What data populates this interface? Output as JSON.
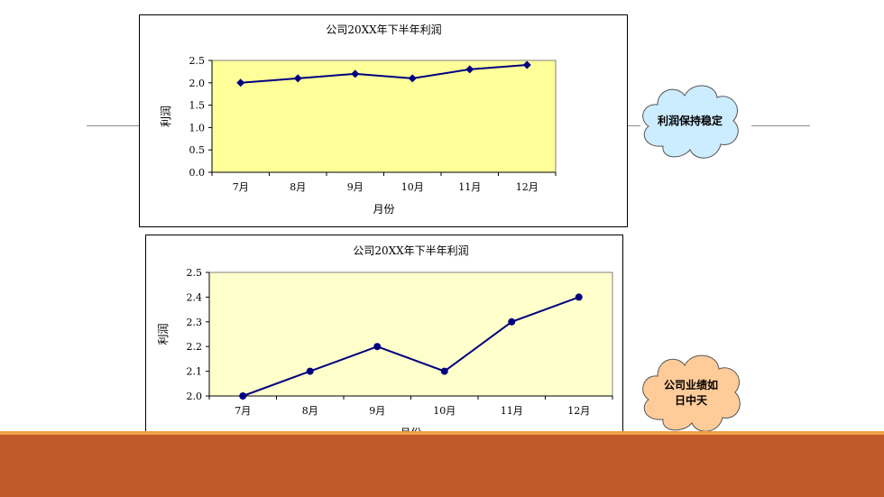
{
  "chart_data": [
    {
      "type": "line",
      "title": "公司20XX年下半年利润",
      "xlabel": "月份",
      "ylabel": "利润",
      "categories": [
        "7月",
        "8月",
        "9月",
        "10月",
        "11月",
        "12月"
      ],
      "values": [
        2.0,
        2.1,
        2.2,
        2.1,
        2.3,
        2.4
      ],
      "ylim": [
        0.0,
        2.5
      ],
      "yticks": [
        "0.0",
        "0.5",
        "1.0",
        "1.5",
        "2.0",
        "2.5"
      ],
      "marker": "diamond",
      "plot_background": "#ffff99",
      "line_color": "#000080",
      "grid": false
    },
    {
      "type": "line",
      "title": "公司20XX年下半年利润",
      "xlabel": "月份",
      "ylabel": "利润",
      "categories": [
        "7月",
        "8月",
        "9月",
        "10月",
        "11月",
        "12月"
      ],
      "values": [
        2.0,
        2.1,
        2.2,
        2.1,
        2.3,
        2.4
      ],
      "ylim": [
        2.0,
        2.5
      ],
      "yticks": [
        "2.0",
        "2.1",
        "2.2",
        "2.3",
        "2.4",
        "2.5"
      ],
      "marker": "circle",
      "plot_background": "#ffffcc",
      "line_color": "#000080",
      "grid": false
    }
  ],
  "callouts": {
    "top": {
      "text": "利润保持稳定",
      "fill": "#ccecff"
    },
    "bottom": {
      "text": "公司业绩如日中天",
      "fill": "#ffcc99"
    }
  },
  "theme": {
    "accent_bar": "#f0a049",
    "footer_bar": "#c05a2a"
  }
}
